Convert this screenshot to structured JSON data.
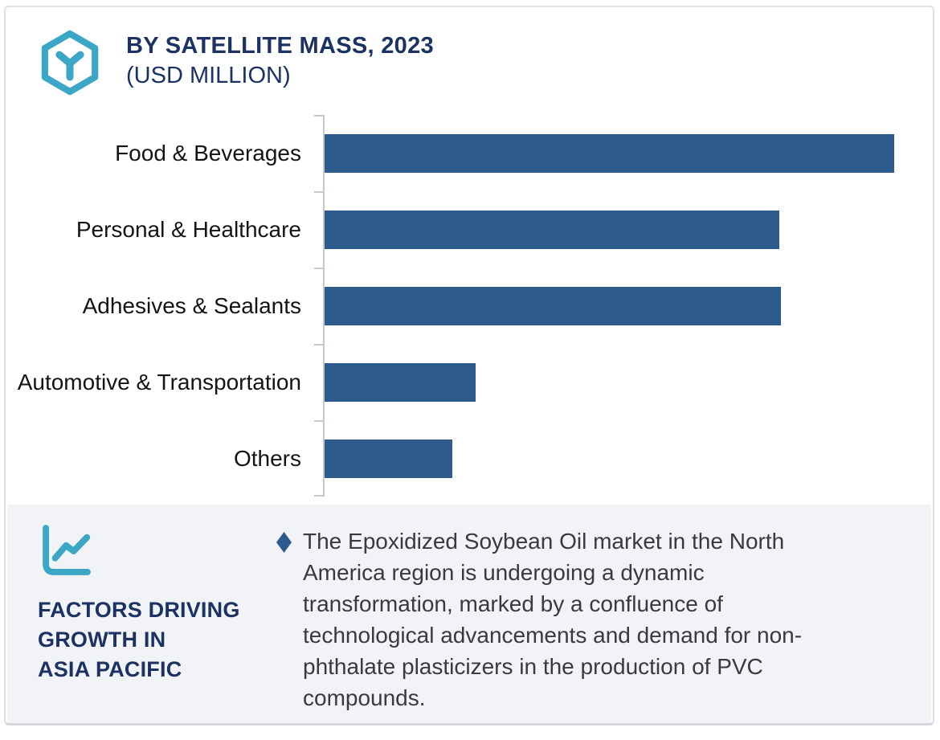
{
  "header": {
    "icon": "hexagon-cube-icon",
    "title": "BY SATELLITE MASS, 2023",
    "subtitle": "(USD MILLION)"
  },
  "chart_data": {
    "type": "bar",
    "orientation": "horizontal",
    "title": "BY SATELLITE MASS, 2023",
    "subtitle": "(USD MILLION)",
    "categories": [
      "Food & Beverages",
      "Personal & Healthcare",
      "Adhesives & Sealants",
      "Automotive & Transportation",
      "Others"
    ],
    "values": [
      100,
      79.8,
      80.1,
      26.5,
      22.4
    ],
    "values_are_relative_estimates": true,
    "xlabel": "",
    "ylabel": "",
    "xlim": [
      0,
      107
    ],
    "grid": false,
    "legend": false,
    "data_labels_shown": false,
    "bar_color": "#2d5c8c",
    "axis_color": "#c6c8cc"
  },
  "factors_panel": {
    "icon": "line-chart-icon",
    "heading": "FACTORS DRIVING\nGROWTH IN\nASIA PACIFIC",
    "bullet_icon": "diamond-bullet-icon",
    "paragraph": "The Epoxidized Soybean Oil market in the North America region is undergoing a dynamic transformation, marked by a confluence of technological advancements and demand for non-phthalate plasticizers in the production of PVC compounds."
  },
  "colors": {
    "accent_teal": "#3ba6c6",
    "navy_heading": "#1b3263",
    "bar_blue": "#2d5c8c",
    "panel_background": "#f2f3f7",
    "body_text": "#3a3a3c",
    "card_border": "#dfe1e6"
  }
}
